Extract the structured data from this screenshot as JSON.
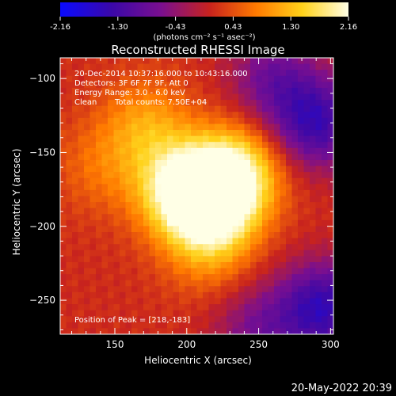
{
  "colorbar": {
    "ticks": [
      "-2.16",
      "-1.30",
      "-0.43",
      "0.43",
      "1.30",
      "2.16"
    ],
    "units": "(photons cm⁻² s⁻¹ asec⁻²)",
    "colors": [
      "#0a0aff",
      "#3b08a8",
      "#7a0f8f",
      "#c8231d",
      "#ff7a00",
      "#ffd21a",
      "#ffffe6"
    ]
  },
  "title": "Reconstructed RHESSI Image",
  "annotations": {
    "time_range": "20-Dec-2014 10:37:16.000 to 10:43:16.000",
    "detectors": "Detectors: 3F 6F 7F 9F, Att 0",
    "energy": "Energy Range: 3.0 - 6.0 keV",
    "method": "Clean",
    "counts": "Total counts: 7.50E+04",
    "peak": "Position of Peak = [218,-183]"
  },
  "footer_date": "20-May-2022 20:39",
  "chart_data": {
    "type": "heatmap",
    "title": "Reconstructed RHESSI Image",
    "xlabel": "Heliocentric X (arcsec)",
    "ylabel": "Heliocentric Y (arcsec)",
    "xlim": [
      112,
      302
    ],
    "ylim": [
      -273,
      -86
    ],
    "xticks": [
      150,
      200,
      250,
      300
    ],
    "yticks": [
      -100,
      -150,
      -200,
      -250
    ],
    "clim": [
      -2.16,
      2.16
    ],
    "peak_value": 2.16,
    "peak_position": [
      218,
      -183
    ],
    "sources": [
      {
        "x": 218,
        "y": -183,
        "amp": 2.16
      },
      {
        "x": 195,
        "y": -175,
        "amp": 1.6
      },
      {
        "x": 235,
        "y": -162,
        "amp": 1.5
      },
      {
        "x": 172,
        "y": -132,
        "amp": 0.9
      },
      {
        "x": 215,
        "y": -215,
        "amp": 0.7
      },
      {
        "x": 140,
        "y": -160,
        "amp": 0.5
      }
    ],
    "minima": [
      {
        "x": 290,
        "y": -130,
        "amp": -1.5
      },
      {
        "x": 295,
        "y": -255,
        "amp": -1.6
      },
      {
        "x": 260,
        "y": -100,
        "amp": -0.9
      },
      {
        "x": 250,
        "y": -270,
        "amp": -0.8
      }
    ]
  }
}
